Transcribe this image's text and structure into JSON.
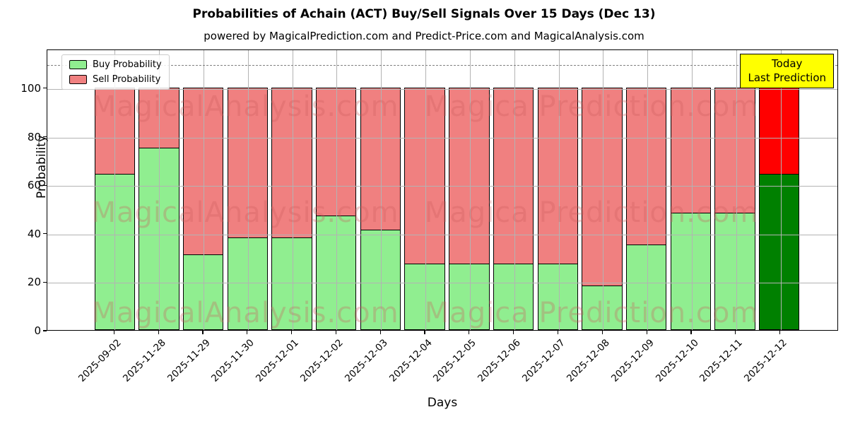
{
  "title": "Probabilities of Achain (ACT) Buy/Sell Signals Over 15 Days (Dec 13)",
  "subtitle": "powered by MagicalPrediction.com and Predict-Price.com and MagicalAnalysis.com",
  "legend": {
    "buy_label": "Buy Probability",
    "sell_label": "Sell Probability"
  },
  "annotation": {
    "line1": "Today",
    "line2": "Last Prediction"
  },
  "watermarks": {
    "left": "MagicalAnalysis.com",
    "right": "Magica Prediction.com"
  },
  "colors": {
    "buy": "#90ee90",
    "sell": "#f08080",
    "buy_today": "#008000",
    "sell_today": "#ff0000",
    "bar_edge": "#000000",
    "grid": "#b3b3b3",
    "dashed_line": "#808080",
    "annotation_bg": "#ffff00",
    "annotation_border": "#000000",
    "watermark": "#cd5c5c"
  },
  "chart_data": {
    "type": "bar",
    "stacked": true,
    "title": "Probabilities of Achain (ACT) Buy/Sell Signals Over 15 Days (Dec 13)",
    "xlabel": "Days",
    "ylabel": "Probability",
    "grid": true,
    "legend_position": "upper left",
    "ylim": [
      0,
      116
    ],
    "yticks": [
      0,
      20,
      40,
      60,
      80,
      100
    ],
    "dashed_line_y": 110,
    "categories": [
      "2025-09-02",
      "2025-11-28",
      "2025-11-29",
      "2025-11-30",
      "2025-12-01",
      "2025-12-02",
      "2025-12-03",
      "2025-12-04",
      "2025-12-05",
      "2025-12-06",
      "2025-12-07",
      "2025-12-08",
      "2025-12-09",
      "2025-12-10",
      "2025-12-11",
      "2025-12-12"
    ],
    "series": [
      {
        "name": "Buy Probability",
        "values": [
          64,
          75,
          31,
          38,
          38,
          47,
          41,
          27,
          27,
          27,
          27,
          18,
          35,
          48,
          48,
          64
        ]
      },
      {
        "name": "Sell Probability",
        "values": [
          36,
          25,
          69,
          62,
          62,
          53,
          59,
          73,
          73,
          73,
          73,
          82,
          65,
          52,
          52,
          36
        ]
      }
    ],
    "today_bar_index": 15
  }
}
